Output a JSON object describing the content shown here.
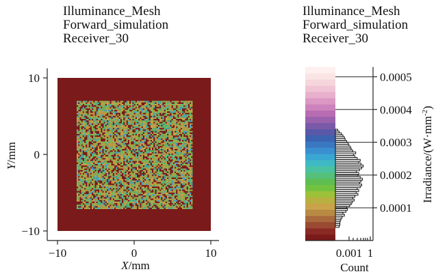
{
  "chart_data": [
    {
      "type": "heatmap",
      "title_lines": [
        "Illuminance_Mesh",
        "Forward_simulation",
        "Receiver_30"
      ],
      "xlabel_var": "X",
      "xlabel_unit": "/mm",
      "ylabel_var": "Y",
      "ylabel_unit": "/mm",
      "xlim": [
        -10,
        10
      ],
      "ylim": [
        -10,
        10
      ],
      "xticks": [
        "-10",
        "0",
        "10"
      ],
      "yticks": [
        "10",
        "0",
        "-10"
      ],
      "illuminated_region": {
        "x": [
          -7.5,
          7.5
        ],
        "y": [
          -7,
          7
        ]
      },
      "background_color": "#7a1a1a",
      "spot_colors": [
        "#c9a24a",
        "#8fb84a",
        "#66c06a",
        "#3fb58f",
        "#3aaec8",
        "#4aa0d8"
      ]
    },
    {
      "type": "bar",
      "title_lines": [
        "Illuminance_Mesh",
        "Forward_simulation",
        "Receiver_30"
      ],
      "xlabel": "Count",
      "ylabel": "Irradiance/(W·mm",
      "ylabel_sup": "-2",
      "ylabel_close": ")",
      "xscale": "log",
      "xticks": [
        "0.001",
        "1"
      ],
      "ylim": [
        0,
        0.00053
      ],
      "yticks": [
        "0.0001",
        "0.0002",
        "0.0003",
        "0.0004",
        "0.0005"
      ],
      "ytick_values": [
        0.0001,
        0.0002,
        0.0003,
        0.0004,
        0.0005
      ],
      "colormap": [
        "#7a1a1a",
        "#8a2a24",
        "#9a4a32",
        "#a86a3c",
        "#b88a44",
        "#c9a24a",
        "#b8b040",
        "#9cc23a",
        "#72c240",
        "#5ebe52",
        "#55c07a",
        "#4ac2a0",
        "#3fbac4",
        "#3aa6d2",
        "#3a8fd0",
        "#3a78c2",
        "#3c63b0",
        "#5a58a8",
        "#7a5aa8",
        "#9a62ac",
        "#b86cb2",
        "#cc82bc",
        "#dc98c4",
        "#e8b0cc",
        "#f0c4d4",
        "#f6d6dc",
        "#fae4e4",
        "#fdf0ee"
      ],
      "values": [
        0.1,
        0.12,
        0.12,
        0.13,
        0.15,
        0.18,
        0.24,
        0.2,
        0.28,
        0.32,
        0.3,
        0.38,
        0.42,
        0.45,
        0.5,
        0.46,
        0.52,
        0.6,
        0.55,
        0.62,
        0.58,
        0.66,
        0.7,
        0.64,
        0.68,
        0.72,
        0.66,
        0.6,
        0.62,
        0.56,
        0.64,
        0.7,
        0.74,
        0.68,
        0.62,
        0.66,
        0.58,
        0.52,
        0.48,
        0.54,
        0.46,
        0.42,
        0.4,
        0.36,
        0.34,
        0.3,
        0.26,
        0.24,
        0.2,
        0.16,
        0.1,
        0.06
      ],
      "bin_range": [
        4e-05,
        0.00034
      ]
    }
  ]
}
